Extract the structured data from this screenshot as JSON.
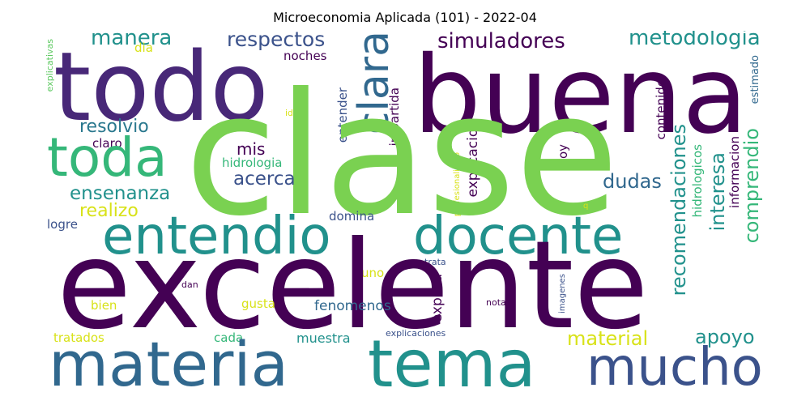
{
  "title": "Microeconomia Aplicada (101) - 2022-04",
  "colors": {
    "purple": "#440154",
    "indigo": "#3b528b",
    "blue": "#31688e",
    "teal": "#21918c",
    "green": "#35b779",
    "lime": "#8fd744",
    "yellow": "#d8e219"
  },
  "words": {
    "clase": "clase",
    "excelente": "excelente",
    "buena": "buena",
    "todo": "todo",
    "materia": "materia",
    "tema": "tema",
    "entendio": "entendio",
    "docente": "docente",
    "toda": "toda",
    "clara": "clara",
    "mucho": "mucho",
    "manera": "manera",
    "respectos": "respectos",
    "simuladores": "simuladores",
    "metodologia": "metodologia",
    "resolvio": "resolvio",
    "mis": "mis",
    "acerca": "acerca",
    "ensenanza": "ensenanza",
    "realizo": "realizo",
    "dudas": "dudas",
    "material": "material",
    "apoyo": "apoyo",
    "recomendaciones": "recomendaciones",
    "interesa": "interesa",
    "comprendio": "comprendio",
    "contenido": "contenido",
    "hidrologia": "hidrologia",
    "claro": "claro",
    "noches": "noches",
    "dia": "dia",
    "entender": "entender",
    "impartida": "impartida",
    "explicacion": "explicacion",
    "hoy": "hoy",
    "estimado": "estimado",
    "informacion": "informacion",
    "hidrologicos": "hidrologicos",
    "idea": "idea",
    "explicativas": "explicativas",
    "profesionalismo": "profesionalismo",
    "q": "q",
    "domina": "domina",
    "logre": "logre",
    "uno": "uno",
    "gusta": "gusta",
    "fenomenos": "fenomenos",
    "explica": "explica",
    "trata": "trata",
    "dan": "dan",
    "bien": "bien",
    "nota": "nota",
    "imagenes": "imagenes",
    "tratados": "tratados",
    "cada": "cada",
    "muestra": "muestra",
    "explicaciones": "explicaciones"
  }
}
